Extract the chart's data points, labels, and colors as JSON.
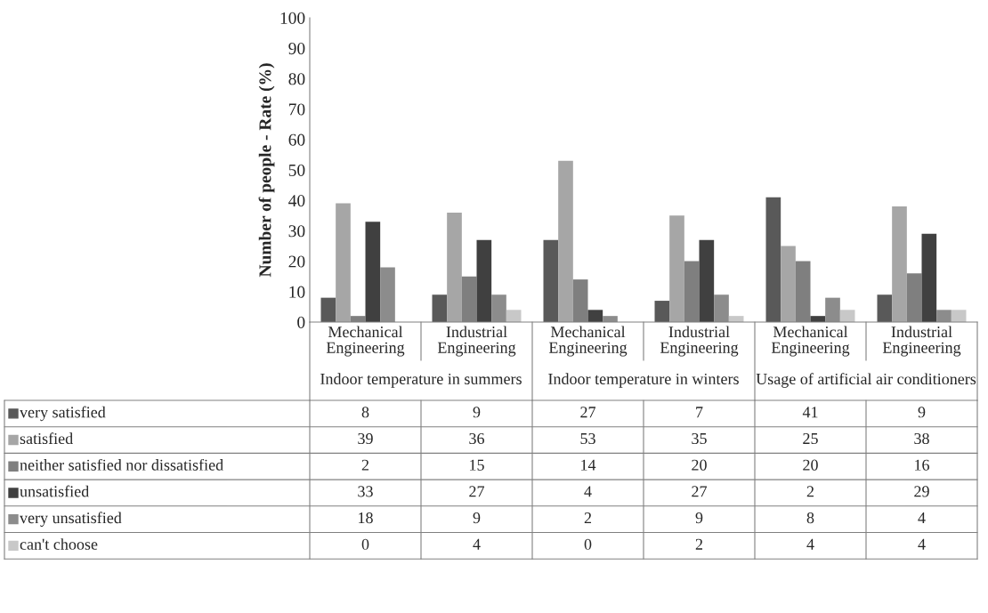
{
  "chart_data": {
    "type": "bar",
    "ylabel": "Number of people - Rate (%)",
    "categories": [
      "Mechanical Engineering",
      "Industrial Engineering",
      "Mechanical Engineering",
      "Industrial Engineering",
      "Mechanical Engineering",
      "Industrial Engineering"
    ],
    "annotations": [
      "Indoor temperature in summers",
      "Indoor temperature in winters",
      "Usage of artificial air conditioners"
    ],
    "series": [
      {
        "name": "very satisfied",
        "color": "#595959",
        "values": [
          8,
          9,
          27,
          7,
          41,
          9
        ]
      },
      {
        "name": "satisfied",
        "color": "#a6a6a6",
        "values": [
          39,
          36,
          53,
          35,
          25,
          38
        ]
      },
      {
        "name": "neither satisfied nor dissatisfied",
        "color": "#7f7f7f",
        "values": [
          2,
          15,
          14,
          20,
          20,
          16
        ]
      },
      {
        "name": "unsatisfied",
        "color": "#404040",
        "values": [
          33,
          27,
          4,
          27,
          2,
          29
        ]
      },
      {
        "name": "very unsatisfied",
        "color": "#8c8c8c",
        "values": [
          18,
          9,
          2,
          9,
          8,
          4
        ]
      },
      {
        "name": "can't choose",
        "color": "#c8c8c8",
        "values": [
          0,
          4,
          0,
          2,
          4,
          4
        ]
      }
    ],
    "ylim": [
      0,
      100
    ],
    "yticks": [
      0,
      10,
      20,
      30,
      40,
      50,
      60,
      70,
      80,
      90,
      100
    ],
    "grid": false,
    "legend": "bottom",
    "data_labels": true
  }
}
